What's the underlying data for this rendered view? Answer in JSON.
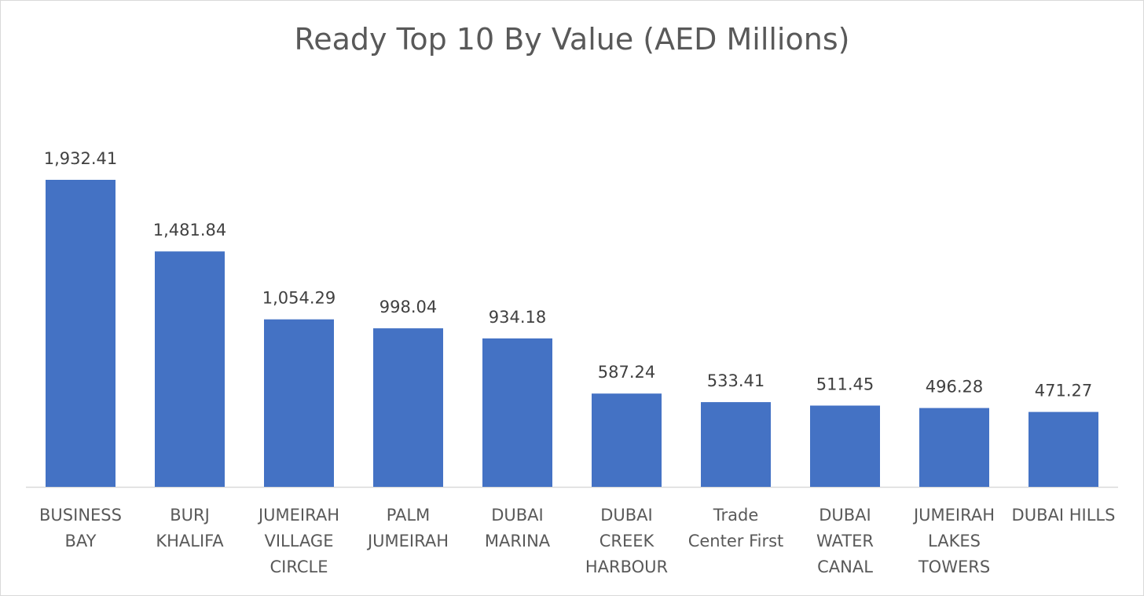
{
  "chart_data": {
    "type": "bar",
    "title": "Ready Top 10 By Value (AED Millions)",
    "xlabel": "",
    "ylabel": "",
    "grid": false,
    "legend": "none",
    "color": "#4472c4",
    "categories": [
      [
        "BUSINESS",
        "BAY"
      ],
      [
        "BURJ",
        "KHALIFA"
      ],
      [
        "JUMEIRAH",
        "VILLAGE",
        "CIRCLE"
      ],
      [
        "PALM",
        "JUMEIRAH"
      ],
      [
        "DUBAI",
        "MARINA"
      ],
      [
        "DUBAI",
        "CREEK",
        "HARBOUR"
      ],
      [
        "Trade",
        "Center First"
      ],
      [
        "DUBAI",
        "WATER",
        "CANAL"
      ],
      [
        "JUMEIRAH",
        "LAKES",
        "TOWERS"
      ],
      [
        "DUBAI HILLS"
      ]
    ],
    "values": [
      1932.41,
      1481.84,
      1054.29,
      998.04,
      934.18,
      587.24,
      533.41,
      511.45,
      496.28,
      471.27
    ],
    "data_labels": [
      "1,932.41",
      "1,481.84",
      "1,054.29",
      "998.04",
      "934.18",
      "587.24",
      "533.41",
      "511.45",
      "496.28",
      "471.27"
    ],
    "ylim": [
      0,
      1932.41
    ]
  }
}
